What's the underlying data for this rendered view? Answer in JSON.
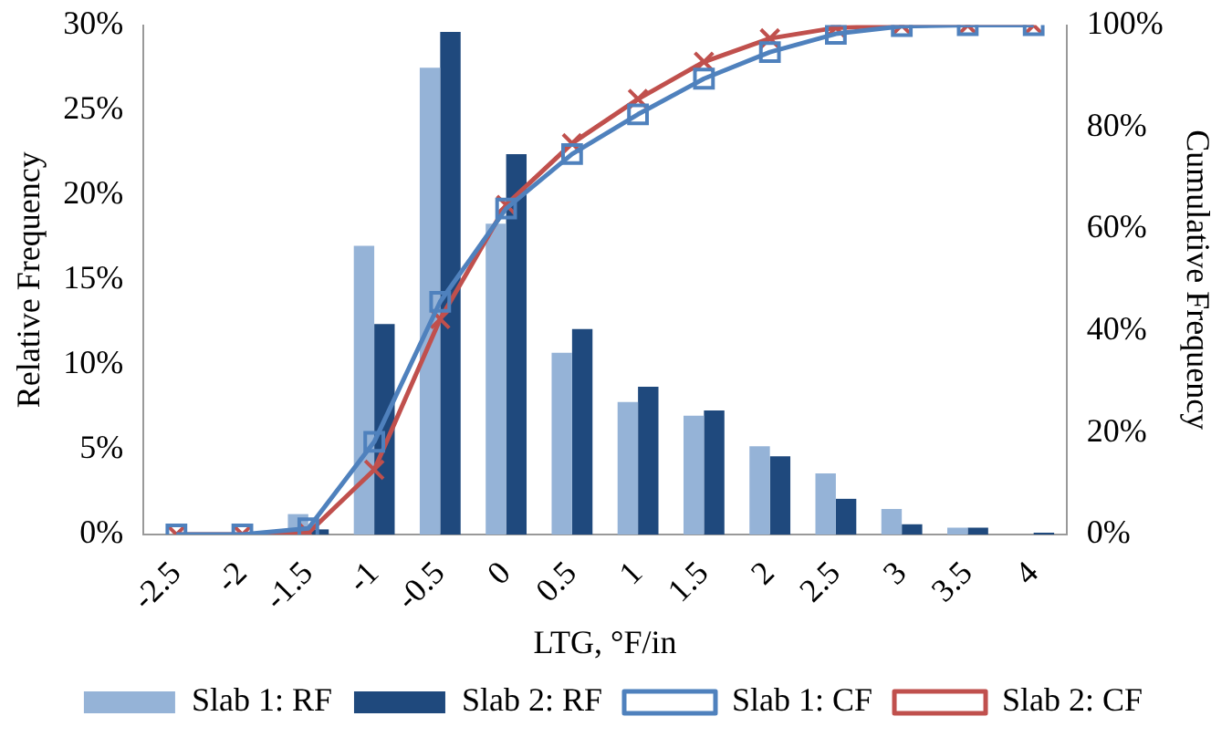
{
  "chart_data": {
    "type": "bar",
    "xlabel": "LTG, °F/in",
    "ylabel": "Relative Frequency",
    "y2label": "Cumulative Frequency",
    "categories": [
      "-2.5",
      "-2",
      "-1.5",
      "-1",
      "-0.5",
      "0",
      "0.5",
      "1",
      "1.5",
      "2",
      "2.5",
      "3",
      "3.5",
      "4"
    ],
    "series": [
      {
        "name": "Slab 1: RF",
        "color": "#95b3d7",
        "values": [
          0,
          0,
          1.2,
          17,
          27.5,
          18.3,
          10.7,
          7.8,
          7,
          5.2,
          3.6,
          1.5,
          0.4,
          0
        ]
      },
      {
        "name": "Slab 2: RF",
        "color": "#1f497d",
        "values": [
          0,
          0,
          0.3,
          12.4,
          29.6,
          22.4,
          12.1,
          8.7,
          7.3,
          4.6,
          2.1,
          0.6,
          0.4,
          0.1
        ]
      },
      {
        "name": "Slab 1: CF",
        "type": "line",
        "axis": "y2",
        "marker": "square",
        "color": "#4f81bd",
        "values": [
          0,
          0,
          1.2,
          18.2,
          45.7,
          64,
          74.7,
          82.5,
          89.5,
          94.7,
          98.3,
          99.8,
          100,
          100
        ]
      },
      {
        "name": "Slab 2: CF",
        "type": "line",
        "axis": "y2",
        "marker": "cross",
        "color": "#c0504d",
        "values": [
          0,
          0,
          0.3,
          12.7,
          42.3,
          64.7,
          76.8,
          85.5,
          92.8,
          97.4,
          99.5,
          100,
          100,
          100
        ]
      }
    ],
    "ylim": [
      0,
      30
    ],
    "yticks": [
      {
        "value": 0,
        "label": "0%"
      },
      {
        "value": 5,
        "label": "5%"
      },
      {
        "value": 10,
        "label": "10%"
      },
      {
        "value": 15,
        "label": "15%"
      },
      {
        "value": 20,
        "label": "20%"
      },
      {
        "value": 25,
        "label": "25%"
      },
      {
        "value": 30,
        "label": "30%"
      }
    ],
    "y2lim": [
      0,
      100
    ],
    "y2ticks": [
      {
        "value": 0,
        "label": "0%"
      },
      {
        "value": 20,
        "label": "20%"
      },
      {
        "value": 40,
        "label": "40%"
      },
      {
        "value": 60,
        "label": "60%"
      },
      {
        "value": 80,
        "label": "80%"
      },
      {
        "value": 100,
        "label": "100%"
      }
    ],
    "grid": false,
    "legend": "bottom"
  }
}
